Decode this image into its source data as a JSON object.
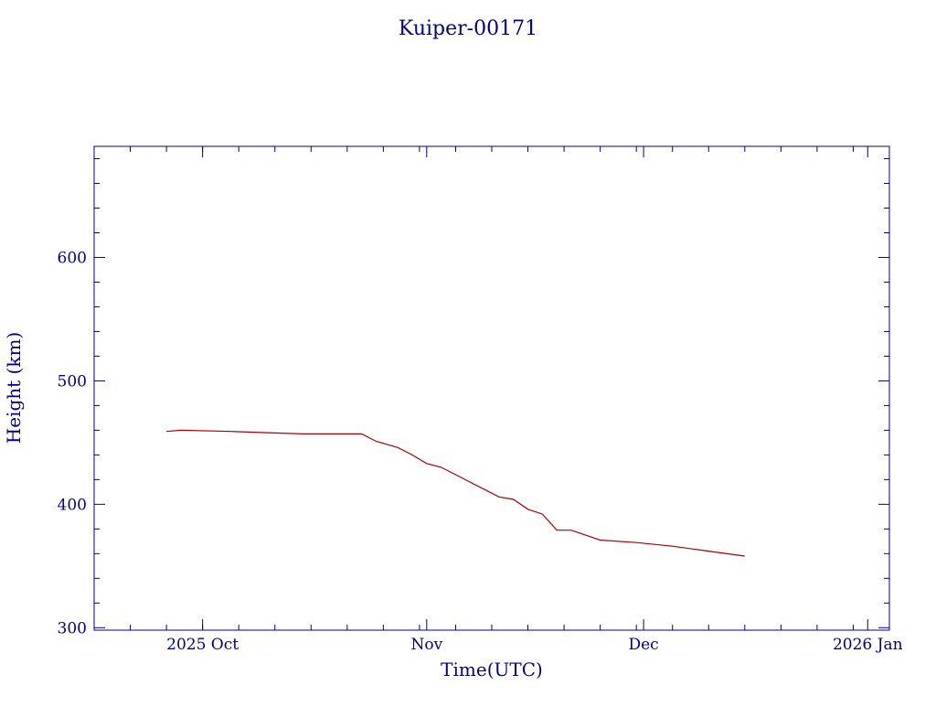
{
  "chart_data": {
    "type": "line",
    "title": "Kuiper-00171",
    "xlabel": "Time(UTC)",
    "ylabel": "Height (km)",
    "ylim": [
      298,
      690
    ],
    "xlim": [
      "2025-09-16",
      "2026-01-04"
    ],
    "x_ticks": [
      {
        "date": "2025-10-01",
        "label": "2025 Oct"
      },
      {
        "date": "2025-11-01",
        "label": "Nov"
      },
      {
        "date": "2025-12-01",
        "label": "Dec"
      },
      {
        "date": "2026-01-01",
        "label": "2026 Jan"
      }
    ],
    "y_ticks": [
      300,
      400,
      500,
      600
    ],
    "grid": false,
    "colors": {
      "axis": "#00008b",
      "text": "#00008b",
      "series": "#aa0000"
    },
    "series": [
      {
        "x": [
          "2025-09-26",
          "2025-09-28",
          "2025-10-05",
          "2025-10-10",
          "2025-10-15",
          "2025-10-20",
          "2025-10-23",
          "2025-10-25",
          "2025-10-28",
          "2025-10-30",
          "2025-11-01",
          "2025-11-03",
          "2025-11-05",
          "2025-11-07",
          "2025-11-09",
          "2025-11-11",
          "2025-11-13",
          "2025-11-15",
          "2025-11-17",
          "2025-11-19",
          "2025-11-21",
          "2025-11-25",
          "2025-11-30",
          "2025-12-05",
          "2025-12-10",
          "2025-12-15"
        ],
        "values": [
          459,
          460,
          459,
          458,
          457,
          457,
          457,
          451,
          446,
          440,
          433,
          430,
          424,
          418,
          412,
          406,
          404,
          396,
          392,
          379,
          379,
          371,
          369,
          366,
          362,
          358
        ]
      }
    ]
  }
}
